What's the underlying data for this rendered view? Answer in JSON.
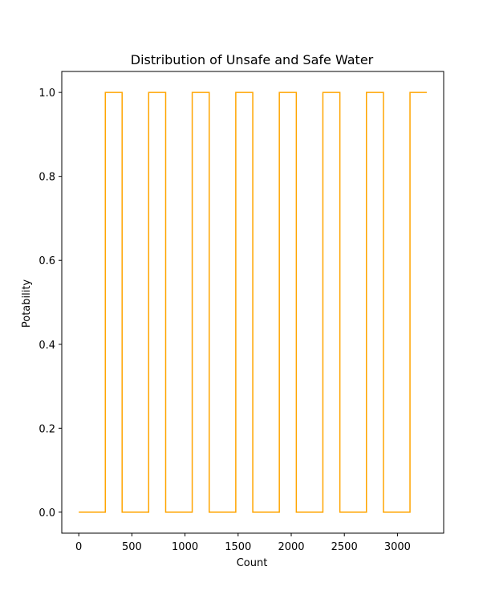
{
  "chart_data": {
    "type": "line",
    "title": "Distribution of Unsafe and Safe Water",
    "xlabel": "Count",
    "ylabel": "Potability",
    "xlim": [
      -160,
      3435
    ],
    "ylim": [
      -0.05,
      1.05
    ],
    "xticks": [
      0,
      500,
      1000,
      1500,
      2000,
      2500,
      3000
    ],
    "yticks": [
      0.0,
      0.2,
      0.4,
      0.6,
      0.8,
      1.0
    ],
    "ytick_labels": [
      "0.0",
      "0.2",
      "0.4",
      "0.6",
      "0.8",
      "1.0"
    ],
    "grid": false,
    "legend": "none",
    "drawstyle": "steps-post",
    "series": [
      {
        "color": "#ffa500",
        "x": [
          0,
          250,
          408,
          658,
          818,
          1068,
          1228,
          1478,
          1638,
          1888,
          2048,
          2298,
          2458,
          2708,
          2868,
          3118,
          3276
        ],
        "y": [
          0,
          1,
          0,
          1,
          0,
          1,
          0,
          1,
          0,
          1,
          0,
          1,
          0,
          1,
          0,
          1,
          1
        ]
      }
    ]
  }
}
